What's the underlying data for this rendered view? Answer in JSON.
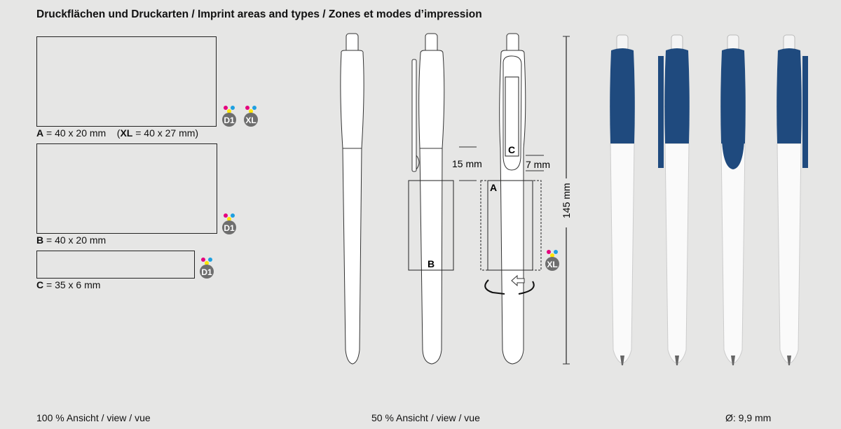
{
  "title": "Druckflächen und Druckarten / Imprint areas and types / Zones et modes d’impression",
  "areas": [
    {
      "letter": "A",
      "text": " = 40 x 20 mm",
      "extra_open": "(",
      "extra_letter": "XL",
      "extra_text": " = 40 x 27 mm)",
      "badges": [
        "D1",
        "XL"
      ]
    },
    {
      "letter": "B",
      "text": " = 40 x 20 mm",
      "badges": [
        "D1"
      ]
    },
    {
      "letter": "C",
      "text": " = 35 x 6 mm",
      "badges": [
        "D1"
      ]
    }
  ],
  "drawing": {
    "dim_15": "15 mm",
    "dim_7": "7 mm",
    "dim_total": "145 mm",
    "label_a": "A",
    "label_b": "B",
    "label_c": "C",
    "badge": "XL"
  },
  "footer": {
    "left": "100 % Ansicht / view / vue",
    "middle": "50 % Ansicht / view / vue",
    "right": "Ø: 9,9 mm"
  },
  "colors": {
    "background": "#e6e6e5",
    "pen_blue": "#1f4a7e",
    "badge_gray": "#6e6e6e",
    "magenta": "#e5007d",
    "cyan": "#1ea0e0",
    "yellow": "#ffe500"
  }
}
